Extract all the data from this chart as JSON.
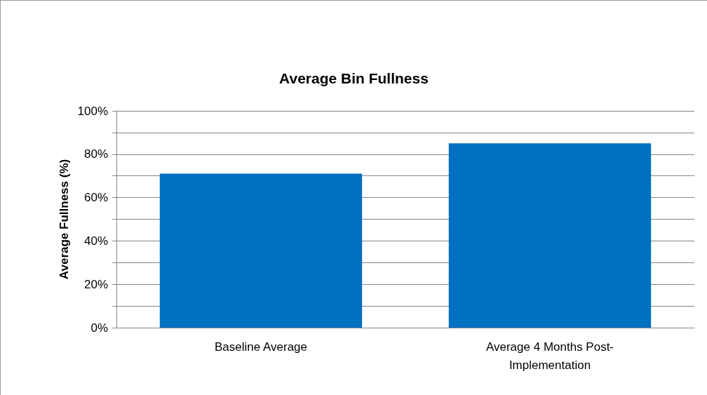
{
  "chart_data": {
    "type": "bar",
    "title": "Average Bin Fullness",
    "ylabel": "Average Fullness (%)",
    "categories": [
      "Baseline Average",
      "Average 4 Months Post-Implementation"
    ],
    "values": [
      71,
      85
    ],
    "color": "#0070c0",
    "ylim": [
      0,
      100
    ],
    "yticks": [
      {
        "value": 0,
        "label": "0%"
      },
      {
        "value": 10,
        "label": null
      },
      {
        "value": 20,
        "label": "20%"
      },
      {
        "value": 30,
        "label": null
      },
      {
        "value": 40,
        "label": "40%"
      },
      {
        "value": 50,
        "label": null
      },
      {
        "value": 60,
        "label": "60%"
      },
      {
        "value": 70,
        "label": null
      },
      {
        "value": 80,
        "label": "80%"
      },
      {
        "value": 90,
        "label": null
      },
      {
        "value": 100,
        "label": "100%"
      }
    ],
    "grid": true
  }
}
